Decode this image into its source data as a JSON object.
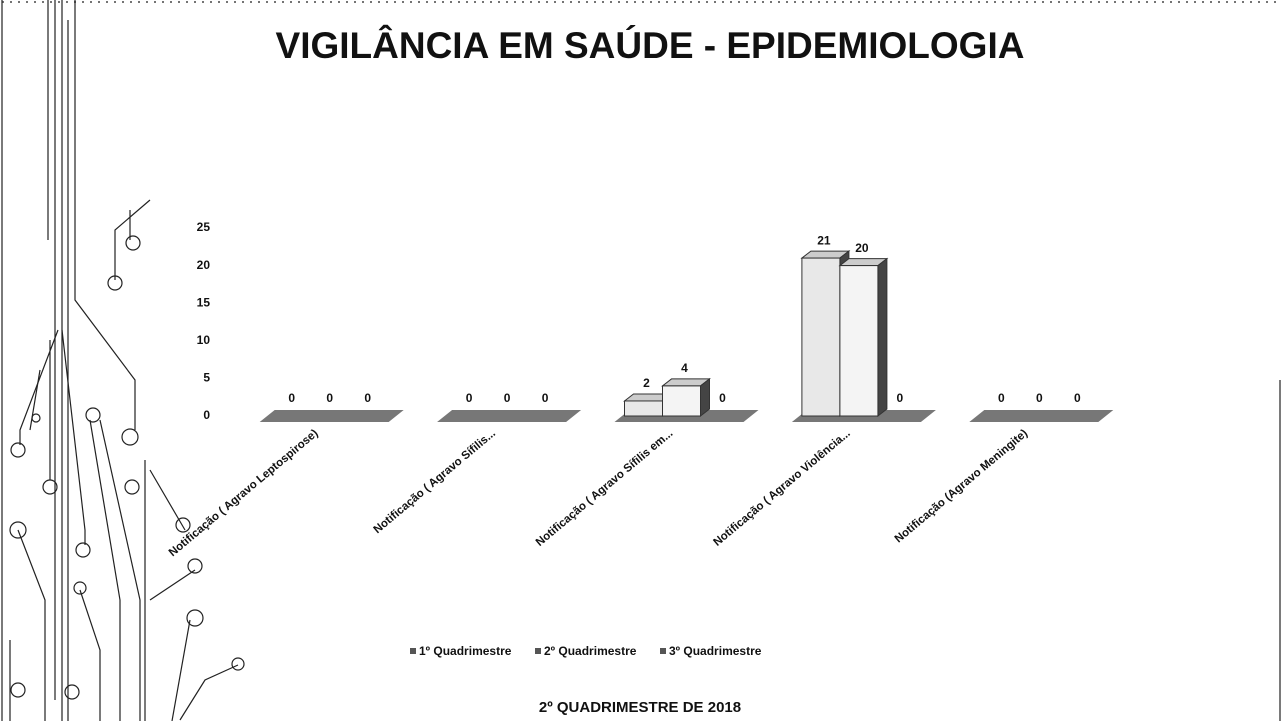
{
  "chart_data": {
    "type": "bar3d",
    "title": "VIGILÂNCIA EM SAÚDE - EPIDEMIOLOGIA",
    "subtitle": "2º QUADRIMESTRE DE 2018",
    "categories": [
      "Notificação ( Agravo Leptospirose)",
      "Notificação ( Agravo Sífilis...",
      "Notificação ( Agravo Sífilis em...",
      "Notificação ( Agravo Violência...",
      "Notificação (Agravo Meningite)"
    ],
    "series": [
      {
        "name": "1º Quadrimestre",
        "color": "#e8e8e8",
        "values": [
          0,
          0,
          2,
          21,
          0
        ]
      },
      {
        "name": "2º Quadrimestre",
        "color": "#f4f4f4",
        "values": [
          0,
          0,
          4,
          20,
          0
        ]
      },
      {
        "name": "3º Quadrimestre",
        "color": "#333333",
        "values": [
          0,
          0,
          0,
          0,
          0
        ]
      }
    ],
    "ylim": [
      0,
      25
    ],
    "yticks": [
      0,
      5,
      10,
      15,
      20,
      25
    ],
    "legend": "bottom"
  }
}
